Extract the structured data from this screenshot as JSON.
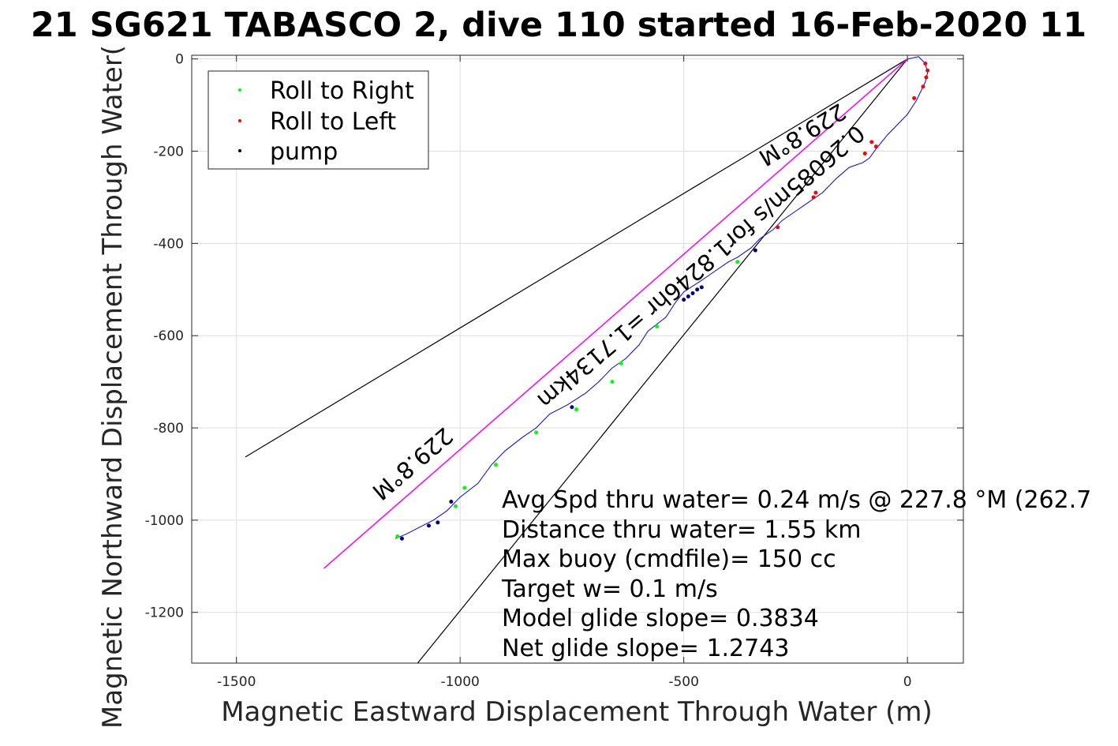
{
  "chart_data": {
    "type": "line",
    "title": "21 SG621 TABASCO 2, dive 110 started 16-Feb-2020 11",
    "xlabel": "Magnetic Eastward Displacement Through Water (m)",
    "ylabel": "Magnetic Northward Displacement Through Water(",
    "xlim": [
      -1600,
      125
    ],
    "ylim": [
      -1310,
      8
    ],
    "xticks": [
      -1500,
      -1000,
      -500,
      0
    ],
    "yticks": [
      0,
      -200,
      -400,
      -600,
      -800,
      -1000,
      -1200
    ],
    "xtick_labels": [
      "-1500",
      "-1000",
      "-500",
      "0"
    ],
    "ytick_labels": [
      "0",
      "-200",
      "-400",
      "-600",
      "-800",
      "-1000",
      "-1200"
    ],
    "grid": true,
    "legend_position": "top-left",
    "legend": [
      {
        "label": "Roll to Right",
        "color": "#00ff00"
      },
      {
        "label": "Roll to Left",
        "color": "#ff0000"
      },
      {
        "label": "pump",
        "color": "#000000"
      }
    ],
    "colors": {
      "track": "#0000ff",
      "heading_lines": "#000000",
      "avg_line": "#ff00ff",
      "roll_right": "#00ff00",
      "roll_left": "#ff0000",
      "pump": "#000080",
      "grid": "#dddddd"
    },
    "track": {
      "x": [
        0,
        25,
        40,
        45,
        40,
        30,
        20,
        10,
        0,
        -20,
        -45,
        -70,
        -85,
        -100,
        -130,
        -160,
        -190,
        -220,
        -250,
        -280,
        -300,
        -330,
        -350,
        -380,
        -400,
        -430,
        -460,
        -500,
        -520,
        -540,
        -560,
        -580,
        -600,
        -630,
        -660,
        -690,
        -720,
        -760,
        -800,
        -830,
        -860,
        -900,
        -930,
        -960,
        -1000,
        -1030,
        -1060,
        -1090,
        -1120,
        -1145
      ],
      "y": [
        0,
        5,
        -10,
        -30,
        -50,
        -70,
        -90,
        -105,
        -120,
        -140,
        -165,
        -195,
        -215,
        -225,
        -235,
        -260,
        -290,
        -310,
        -330,
        -350,
        -370,
        -390,
        -410,
        -430,
        -440,
        -460,
        -480,
        -505,
        -530,
        -560,
        -575,
        -590,
        -620,
        -650,
        -670,
        -700,
        -725,
        -750,
        -770,
        -800,
        -820,
        -850,
        -880,
        -920,
        -950,
        -980,
        -1000,
        -1015,
        -1030,
        -1040
      ]
    },
    "roll_right_points": {
      "x": [
        -830,
        -740,
        -660,
        -640,
        -560,
        -920,
        -990,
        -1010,
        -1140,
        -380
      ],
      "y": [
        -810,
        -760,
        -700,
        -660,
        -580,
        -880,
        -930,
        -970,
        -1035,
        -440
      ]
    },
    "roll_left_points": {
      "x": [
        40,
        45,
        42,
        35,
        15,
        -80,
        -70,
        -95,
        -205,
        -210,
        -290
      ],
      "y": [
        -10,
        -25,
        -40,
        -60,
        -85,
        -180,
        -190,
        -205,
        -290,
        -300,
        -365
      ]
    },
    "pump_points": {
      "x": [
        -470,
        -480,
        -490,
        -500,
        -460,
        -340,
        -1050,
        -1070,
        -1020,
        -1130,
        -750
      ],
      "y": [
        -500,
        -508,
        -515,
        -522,
        -495,
        -415,
        -1005,
        -1012,
        -960,
        -1040,
        -755
      ]
    },
    "heading_lines": [
      {
        "x": [
          0,
          -1480
        ],
        "y": [
          0,
          -863
        ]
      },
      {
        "x": [
          0,
          -1095
        ],
        "y": [
          0,
          -1310
        ]
      }
    ],
    "avg_line": {
      "x": [
        0,
        -1305
      ],
      "y": [
        0,
        -1105
      ]
    },
    "rotated_labels": [
      "229.8°M",
      "0.26085m/s for1.8246hr =1.7134km",
      "229.8°M"
    ],
    "annotations": [
      "Avg Spd thru water=  0.24 m/s @ 227.8 °M (262.7",
      "Distance thru water=  1.55 km",
      "Max buoy (cmdfile)= 150 cc",
      "Target w= 0.1 m/s",
      "Model glide slope= 0.3834",
      "Net glide slope= 1.2743"
    ]
  }
}
